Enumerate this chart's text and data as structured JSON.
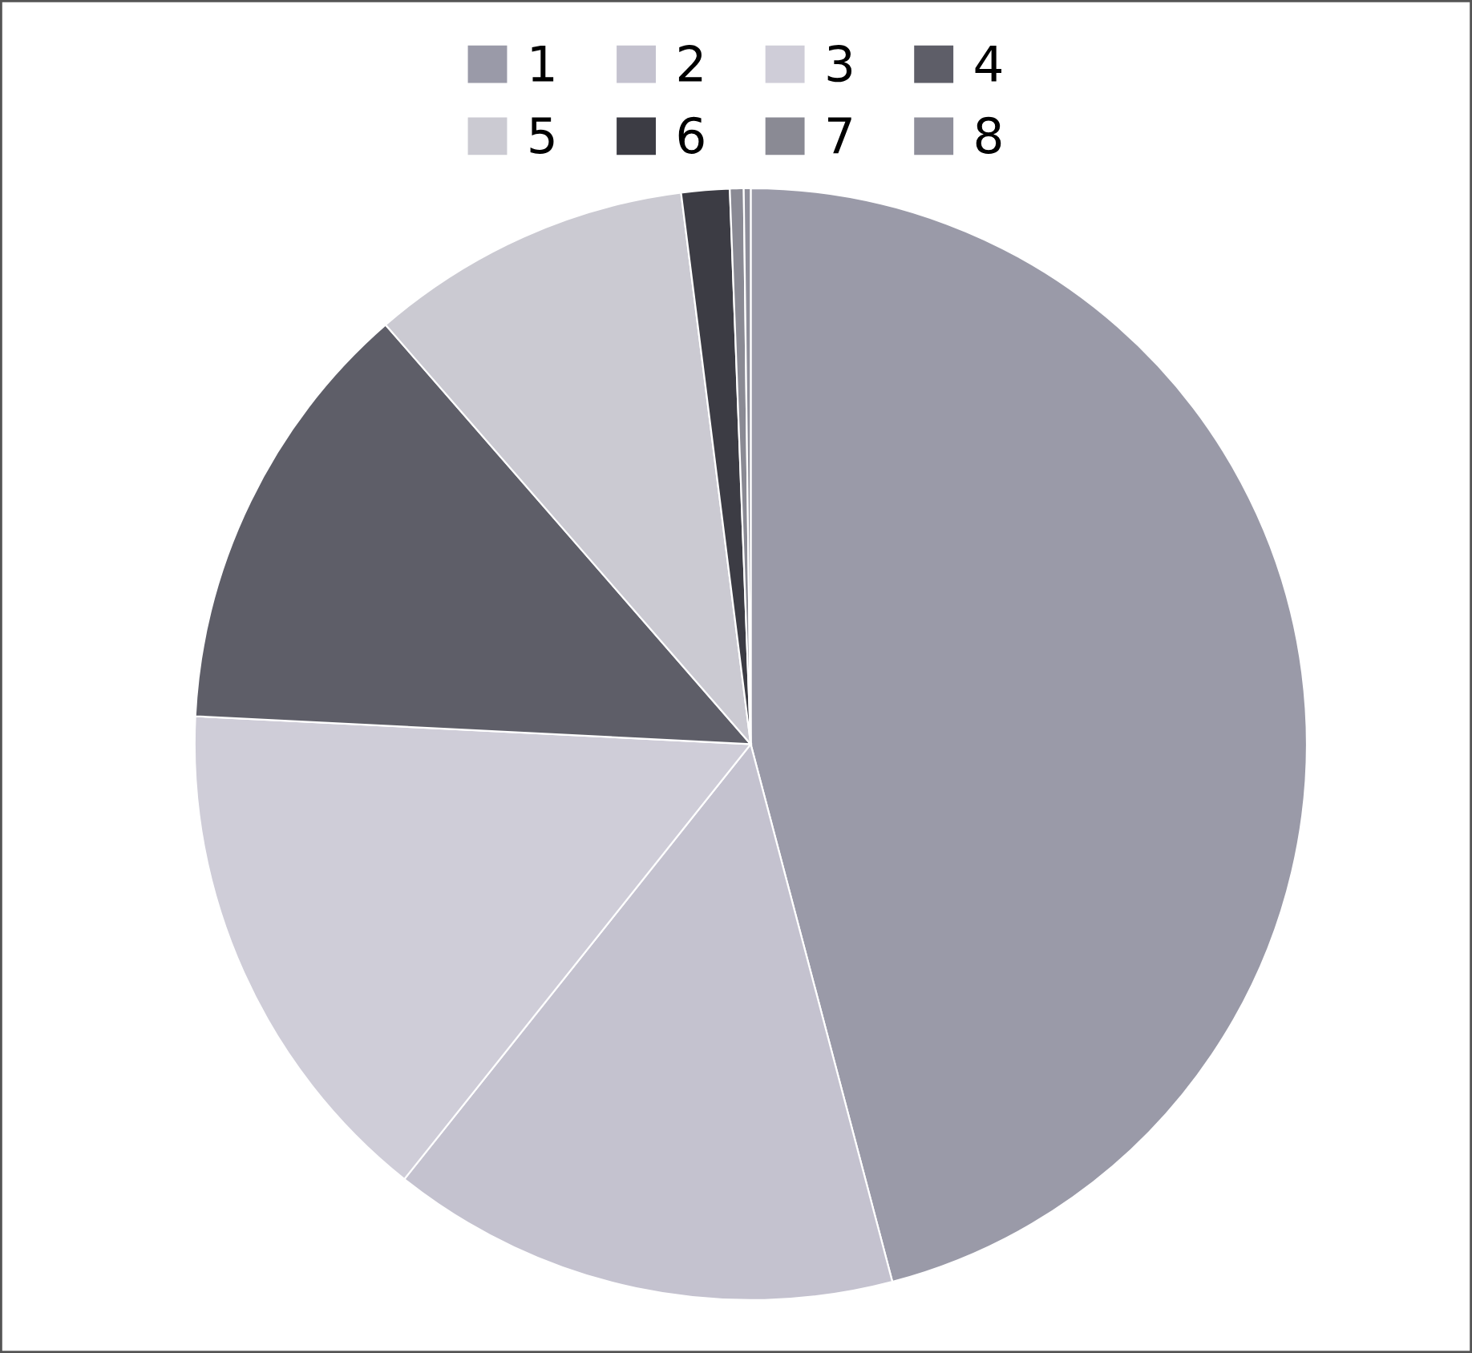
{
  "chart_data": {
    "type": "pie",
    "categories": [
      "1",
      "2",
      "3",
      "4",
      "5",
      "6",
      "7",
      "8"
    ],
    "values": [
      45.9,
      14.8,
      15.1,
      12.8,
      9.4,
      1.4,
      0.4,
      0.2
    ],
    "colors": [
      "#9a9aa8",
      "#c4c2cf",
      "#cfcdd8",
      "#5e5e68",
      "#cbcad2",
      "#3c3c44",
      "#8a8a94",
      "#8e8e9a"
    ],
    "legend": "top"
  }
}
